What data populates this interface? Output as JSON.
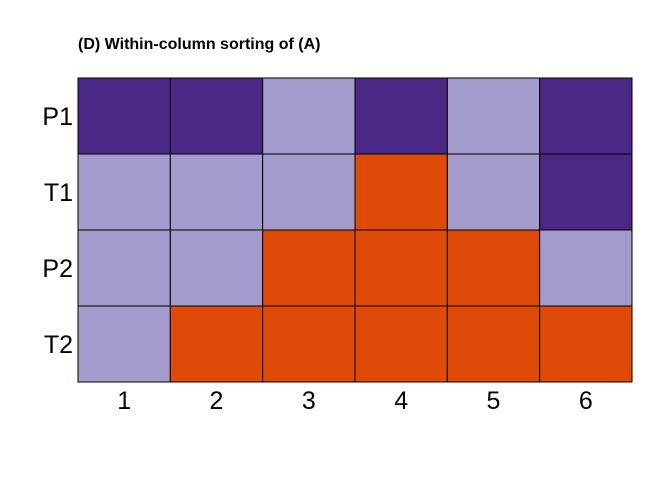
{
  "chart_data": {
    "type": "heatmap",
    "title": "(D)  Within-column sorting of (A)",
    "xlabel": "",
    "ylabel": "",
    "categories": [
      "1",
      "2",
      "3",
      "4",
      "5",
      "6"
    ],
    "rows": [
      "P1",
      "T1",
      "P2",
      "T2"
    ],
    "values": [
      [
        "dark",
        "dark",
        "light",
        "dark",
        "light",
        "dark"
      ],
      [
        "light",
        "light",
        "light",
        "orange",
        "light",
        "dark"
      ],
      [
        "light",
        "light",
        "orange",
        "orange",
        "orange",
        "light"
      ],
      [
        "light",
        "orange",
        "orange",
        "orange",
        "orange",
        "orange"
      ]
    ],
    "colors": {
      "dark": "#4a2885",
      "light": "#a39bcb",
      "orange": "#df4b07"
    },
    "grid": true,
    "legend": "none"
  }
}
